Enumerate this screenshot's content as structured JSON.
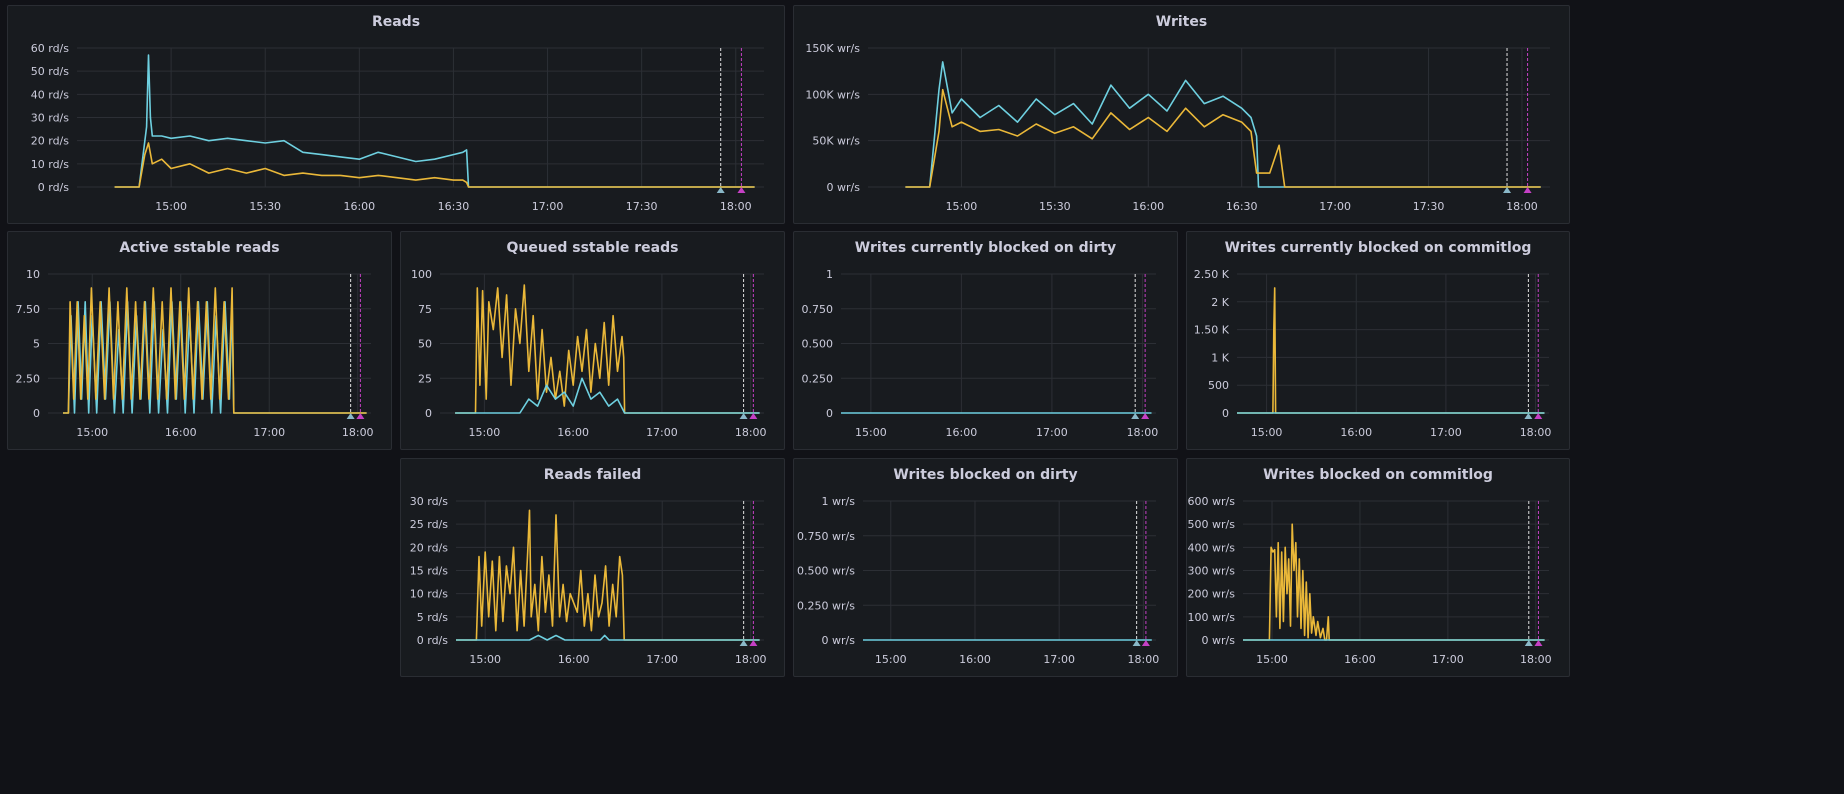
{
  "colors": {
    "series_teal": "#6ed0e0",
    "series_yellow": "#eab839",
    "series_green": "#7eb26d",
    "annotation_white": "#e0e0e0",
    "annotation_magenta": "#c540c5"
  },
  "chart_data": [
    {
      "id": "reads",
      "type": "line",
      "title": "Reads",
      "x_ticks": [
        "15:00",
        "15:30",
        "16:00",
        "16:30",
        "17:00",
        "17:30",
        "18:00"
      ],
      "y_ticks": [
        "60 rd/s",
        "50 rd/s",
        "40 rd/s",
        "30 rd/s",
        "20 rd/s",
        "10 rd/s",
        "0 rd/s"
      ],
      "ylim": [
        0,
        60
      ],
      "annotations": [
        17.92,
        18.03
      ],
      "series": [
        {
          "color": "#6ed0e0",
          "x": [
            14.7,
            14.83,
            14.87,
            14.88,
            14.89,
            14.9,
            14.95,
            15.0,
            15.1,
            15.2,
            15.3,
            15.4,
            15.5,
            15.6,
            15.7,
            15.8,
            15.9,
            16.0,
            16.1,
            16.2,
            16.3,
            16.4,
            16.5,
            16.55,
            16.57,
            16.58,
            18.1
          ],
          "y": [
            0,
            0,
            26,
            57,
            30,
            22,
            22,
            21,
            22,
            20,
            21,
            20,
            19,
            20,
            15,
            14,
            13,
            12,
            15,
            13,
            11,
            12,
            14,
            15,
            16,
            0,
            0
          ]
        },
        {
          "color": "#eab839",
          "x": [
            14.7,
            14.83,
            14.86,
            14.88,
            14.9,
            14.95,
            15.0,
            15.1,
            15.2,
            15.3,
            15.4,
            15.5,
            15.6,
            15.7,
            15.8,
            15.9,
            16.0,
            16.1,
            16.2,
            16.3,
            16.4,
            16.5,
            16.55,
            16.57,
            16.58,
            18.1
          ],
          "y": [
            0,
            0,
            14,
            19,
            10,
            12,
            8,
            10,
            6,
            8,
            6,
            8,
            5,
            6,
            5,
            5,
            4,
            5,
            4,
            3,
            4,
            3,
            3,
            2,
            0,
            0
          ]
        }
      ]
    },
    {
      "id": "writes",
      "type": "line",
      "title": "Writes",
      "x_ticks": [
        "15:00",
        "15:30",
        "16:00",
        "16:30",
        "17:00",
        "17:30",
        "18:00"
      ],
      "y_ticks": [
        "150K wr/s",
        "100K wr/s",
        "50K wr/s",
        "0 wr/s"
      ],
      "ylim": [
        0,
        150000
      ],
      "annotations": [
        17.92,
        18.03
      ],
      "series": [
        {
          "color": "#6ed0e0",
          "x": [
            14.7,
            14.83,
            14.88,
            14.9,
            14.95,
            15.0,
            15.1,
            15.2,
            15.3,
            15.4,
            15.5,
            15.6,
            15.7,
            15.8,
            15.9,
            16.0,
            16.1,
            16.2,
            16.3,
            16.4,
            16.5,
            16.55,
            16.58,
            16.59,
            18.1
          ],
          "y": [
            0,
            0,
            105000,
            135000,
            80000,
            95000,
            75000,
            88000,
            70000,
            95000,
            78000,
            90000,
            68000,
            110000,
            85000,
            100000,
            82000,
            115000,
            90000,
            98000,
            85000,
            75000,
            55000,
            0,
            0
          ]
        },
        {
          "color": "#eab839",
          "x": [
            14.7,
            14.83,
            14.88,
            14.9,
            14.95,
            15.0,
            15.1,
            15.2,
            15.3,
            15.4,
            15.5,
            15.6,
            15.7,
            15.8,
            15.9,
            16.0,
            16.1,
            16.2,
            16.3,
            16.4,
            16.5,
            16.55,
            16.58,
            16.6,
            16.65,
            16.7,
            16.72,
            16.73,
            18.1
          ],
          "y": [
            0,
            0,
            60000,
            105000,
            65000,
            70000,
            60000,
            62000,
            55000,
            68000,
            58000,
            65000,
            52000,
            80000,
            62000,
            75000,
            60000,
            85000,
            65000,
            78000,
            70000,
            60000,
            15000,
            15000,
            15000,
            45000,
            15000,
            0,
            0
          ]
        }
      ]
    },
    {
      "id": "active-sstable",
      "type": "line",
      "title": "Active sstable reads",
      "x_ticks": [
        "15:00",
        "16:00",
        "17:00",
        "18:00"
      ],
      "y_ticks": [
        "10",
        "7.50",
        "5",
        "2.50",
        "0"
      ],
      "ylim": [
        0,
        10
      ],
      "annotations": [
        17.92,
        18.03
      ],
      "series": [
        {
          "color": "#6ed0e0",
          "x": [
            14.67,
            14.73,
            14.76,
            14.8,
            14.84,
            14.88,
            14.92,
            14.96,
            15.0,
            15.05,
            15.1,
            15.15,
            15.2,
            15.25,
            15.3,
            15.35,
            15.4,
            15.45,
            15.5,
            15.55,
            15.6,
            15.65,
            15.7,
            15.75,
            15.8,
            15.85,
            15.9,
            15.95,
            16.0,
            16.05,
            16.1,
            16.15,
            16.2,
            16.25,
            16.3,
            16.35,
            16.4,
            16.45,
            16.5,
            16.55,
            16.58,
            16.6,
            18.1
          ],
          "y": [
            0,
            0,
            7,
            0,
            8,
            1,
            8,
            0,
            7,
            0,
            8,
            1,
            8,
            0,
            6,
            0,
            8,
            0,
            7,
            1,
            8,
            0,
            8,
            0,
            6,
            0,
            8,
            1,
            8,
            0,
            7,
            0,
            8,
            1,
            8,
            0,
            7,
            0,
            8,
            1,
            8,
            0,
            0
          ]
        },
        {
          "color": "#eab839",
          "x": [
            14.67,
            14.73,
            14.75,
            14.79,
            14.83,
            14.87,
            14.91,
            14.95,
            14.99,
            15.04,
            15.09,
            15.14,
            15.19,
            15.24,
            15.29,
            15.34,
            15.39,
            15.44,
            15.49,
            15.54,
            15.59,
            15.64,
            15.69,
            15.74,
            15.79,
            15.84,
            15.89,
            15.94,
            15.99,
            16.04,
            16.09,
            16.14,
            16.19,
            16.24,
            16.29,
            16.34,
            16.39,
            16.44,
            16.49,
            16.54,
            16.58,
            16.6,
            18.1
          ],
          "y": [
            0,
            0,
            8,
            1,
            8,
            1,
            7,
            1,
            9,
            1,
            8,
            1,
            9,
            1,
            8,
            1,
            9,
            1,
            8,
            1,
            8,
            1,
            9,
            1,
            8,
            1,
            9,
            1,
            8,
            1,
            9,
            1,
            8,
            1,
            8,
            1,
            9,
            1,
            8,
            1,
            9,
            0,
            0
          ]
        }
      ]
    },
    {
      "id": "queued-sstable",
      "type": "line",
      "title": "Queued sstable reads",
      "x_ticks": [
        "15:00",
        "16:00",
        "17:00",
        "18:00"
      ],
      "y_ticks": [
        "100",
        "75",
        "50",
        "25",
        "0"
      ],
      "ylim": [
        0,
        100
      ],
      "annotations": [
        17.92,
        18.03
      ],
      "series": [
        {
          "color": "#eab839",
          "x": [
            14.67,
            14.9,
            14.92,
            14.95,
            14.98,
            15.02,
            15.05,
            15.1,
            15.15,
            15.2,
            15.25,
            15.3,
            15.35,
            15.4,
            15.45,
            15.5,
            15.55,
            15.6,
            15.65,
            15.7,
            15.75,
            15.8,
            15.85,
            15.9,
            15.95,
            16.0,
            16.05,
            16.1,
            16.15,
            16.2,
            16.25,
            16.3,
            16.35,
            16.4,
            16.45,
            16.5,
            16.55,
            16.57,
            16.58,
            18.1
          ],
          "y": [
            0,
            0,
            90,
            20,
            88,
            10,
            80,
            60,
            90,
            40,
            85,
            20,
            75,
            50,
            92,
            30,
            70,
            10,
            60,
            15,
            40,
            10,
            30,
            5,
            45,
            20,
            55,
            30,
            60,
            15,
            50,
            25,
            65,
            20,
            70,
            30,
            55,
            40,
            0,
            0
          ]
        },
        {
          "color": "#6ed0e0",
          "x": [
            14.67,
            15.4,
            15.5,
            15.6,
            15.7,
            15.8,
            15.9,
            16.0,
            16.1,
            16.2,
            16.3,
            16.4,
            16.5,
            16.58,
            18.1
          ],
          "y": [
            0,
            0,
            10,
            5,
            20,
            10,
            15,
            5,
            25,
            10,
            15,
            5,
            10,
            0,
            0
          ]
        }
      ]
    },
    {
      "id": "blocked-dirty-current",
      "type": "line",
      "title": "Writes currently blocked on dirty",
      "x_ticks": [
        "15:00",
        "16:00",
        "17:00",
        "18:00"
      ],
      "y_ticks": [
        "1",
        "0.750",
        "0.500",
        "0.250",
        "0"
      ],
      "ylim": [
        0,
        1
      ],
      "annotations": [
        17.92,
        18.03
      ],
      "series": [
        {
          "color": "#6ed0e0",
          "x": [
            14.67,
            18.1
          ],
          "y": [
            0,
            0
          ]
        }
      ]
    },
    {
      "id": "blocked-commitlog-current",
      "type": "line",
      "title": "Writes currently blocked on commitlog",
      "x_ticks": [
        "15:00",
        "16:00",
        "17:00",
        "18:00"
      ],
      "y_ticks": [
        "2.50 K",
        "2 K",
        "1.50 K",
        "1 K",
        "500",
        "0"
      ],
      "ylim": [
        0,
        2500
      ],
      "annotations": [
        17.92,
        18.03
      ],
      "series": [
        {
          "color": "#eab839",
          "x": [
            14.67,
            15.07,
            15.08,
            15.09,
            15.1,
            18.1
          ],
          "y": [
            0,
            0,
            1500,
            2250,
            0,
            0
          ]
        },
        {
          "color": "#6ed0e0",
          "x": [
            14.67,
            18.1
          ],
          "y": [
            0,
            0
          ]
        }
      ]
    },
    {
      "id": "reads-failed",
      "type": "line",
      "title": "Reads failed",
      "x_ticks": [
        "15:00",
        "16:00",
        "17:00",
        "18:00"
      ],
      "y_ticks": [
        "30 rd/s",
        "25 rd/s",
        "20 rd/s",
        "15 rd/s",
        "10 rd/s",
        "5 rd/s",
        "0 rd/s"
      ],
      "ylim": [
        0,
        30
      ],
      "annotations": [
        17.92,
        18.03
      ],
      "series": [
        {
          "color": "#eab839",
          "x": [
            14.67,
            14.9,
            14.93,
            14.96,
            15.0,
            15.04,
            15.08,
            15.12,
            15.16,
            15.2,
            15.24,
            15.28,
            15.32,
            15.36,
            15.4,
            15.44,
            15.48,
            15.5,
            15.52,
            15.56,
            15.6,
            15.64,
            15.68,
            15.72,
            15.76,
            15.8,
            15.84,
            15.88,
            15.92,
            15.96,
            16.0,
            16.04,
            16.08,
            16.12,
            16.16,
            16.2,
            16.24,
            16.28,
            16.32,
            16.36,
            16.4,
            16.44,
            16.48,
            16.52,
            16.55,
            16.57,
            16.58,
            18.1
          ],
          "y": [
            0,
            0,
            18,
            3,
            19,
            5,
            17,
            2,
            18,
            4,
            16,
            10,
            20,
            2,
            15,
            3,
            19,
            28,
            5,
            12,
            2,
            18,
            6,
            14,
            3,
            27,
            5,
            12,
            4,
            10,
            8,
            6,
            15,
            3,
            10,
            2,
            14,
            5,
            8,
            16,
            3,
            12,
            5,
            18,
            14,
            0,
            0,
            0
          ]
        },
        {
          "color": "#6ed0e0",
          "x": [
            14.67,
            15.5,
            15.6,
            15.7,
            15.8,
            15.9,
            16.0,
            16.3,
            16.35,
            16.4,
            18.1
          ],
          "y": [
            0,
            0,
            1,
            0,
            1,
            0,
            0,
            0,
            1,
            0,
            0
          ]
        }
      ]
    },
    {
      "id": "blocked-dirty",
      "type": "line",
      "title": "Writes blocked on dirty",
      "x_ticks": [
        "15:00",
        "16:00",
        "17:00",
        "18:00"
      ],
      "y_ticks": [
        "1 wr/s",
        "0.750 wr/s",
        "0.500 wr/s",
        "0.250 wr/s",
        "0 wr/s"
      ],
      "ylim": [
        0,
        1
      ],
      "annotations": [
        17.92,
        18.03
      ],
      "series": [
        {
          "color": "#6ed0e0",
          "x": [
            14.67,
            18.1
          ],
          "y": [
            0,
            0
          ]
        }
      ]
    },
    {
      "id": "blocked-commitlog",
      "type": "line",
      "title": "Writes blocked on commitlog",
      "x_ticks": [
        "15:00",
        "16:00",
        "17:00",
        "18:00"
      ],
      "y_ticks": [
        "600 wr/s",
        "500 wr/s",
        "400 wr/s",
        "300 wr/s",
        "200 wr/s",
        "100 wr/s",
        "0 wr/s"
      ],
      "ylim": [
        0,
        600
      ],
      "annotations": [
        17.92,
        18.03
      ],
      "series": [
        {
          "color": "#eab839",
          "x": [
            14.67,
            14.97,
            14.99,
            15.01,
            15.03,
            15.05,
            15.07,
            15.09,
            15.11,
            15.13,
            15.15,
            15.17,
            15.19,
            15.21,
            15.23,
            15.25,
            15.27,
            15.29,
            15.31,
            15.33,
            15.35,
            15.37,
            15.39,
            15.41,
            15.43,
            15.45,
            15.47,
            15.5,
            15.52,
            15.55,
            15.58,
            15.6,
            15.62,
            15.64,
            15.65,
            15.66,
            18.1
          ],
          "y": [
            0,
            0,
            400,
            380,
            390,
            100,
            420,
            50,
            380,
            80,
            400,
            200,
            350,
            60,
            500,
            300,
            420,
            100,
            350,
            50,
            300,
            20,
            250,
            10,
            200,
            30,
            100,
            20,
            80,
            10,
            50,
            0,
            0,
            100,
            0,
            0,
            0
          ]
        },
        {
          "color": "#6ed0e0",
          "x": [
            14.67,
            18.1
          ],
          "y": [
            0,
            0
          ]
        }
      ]
    }
  ]
}
